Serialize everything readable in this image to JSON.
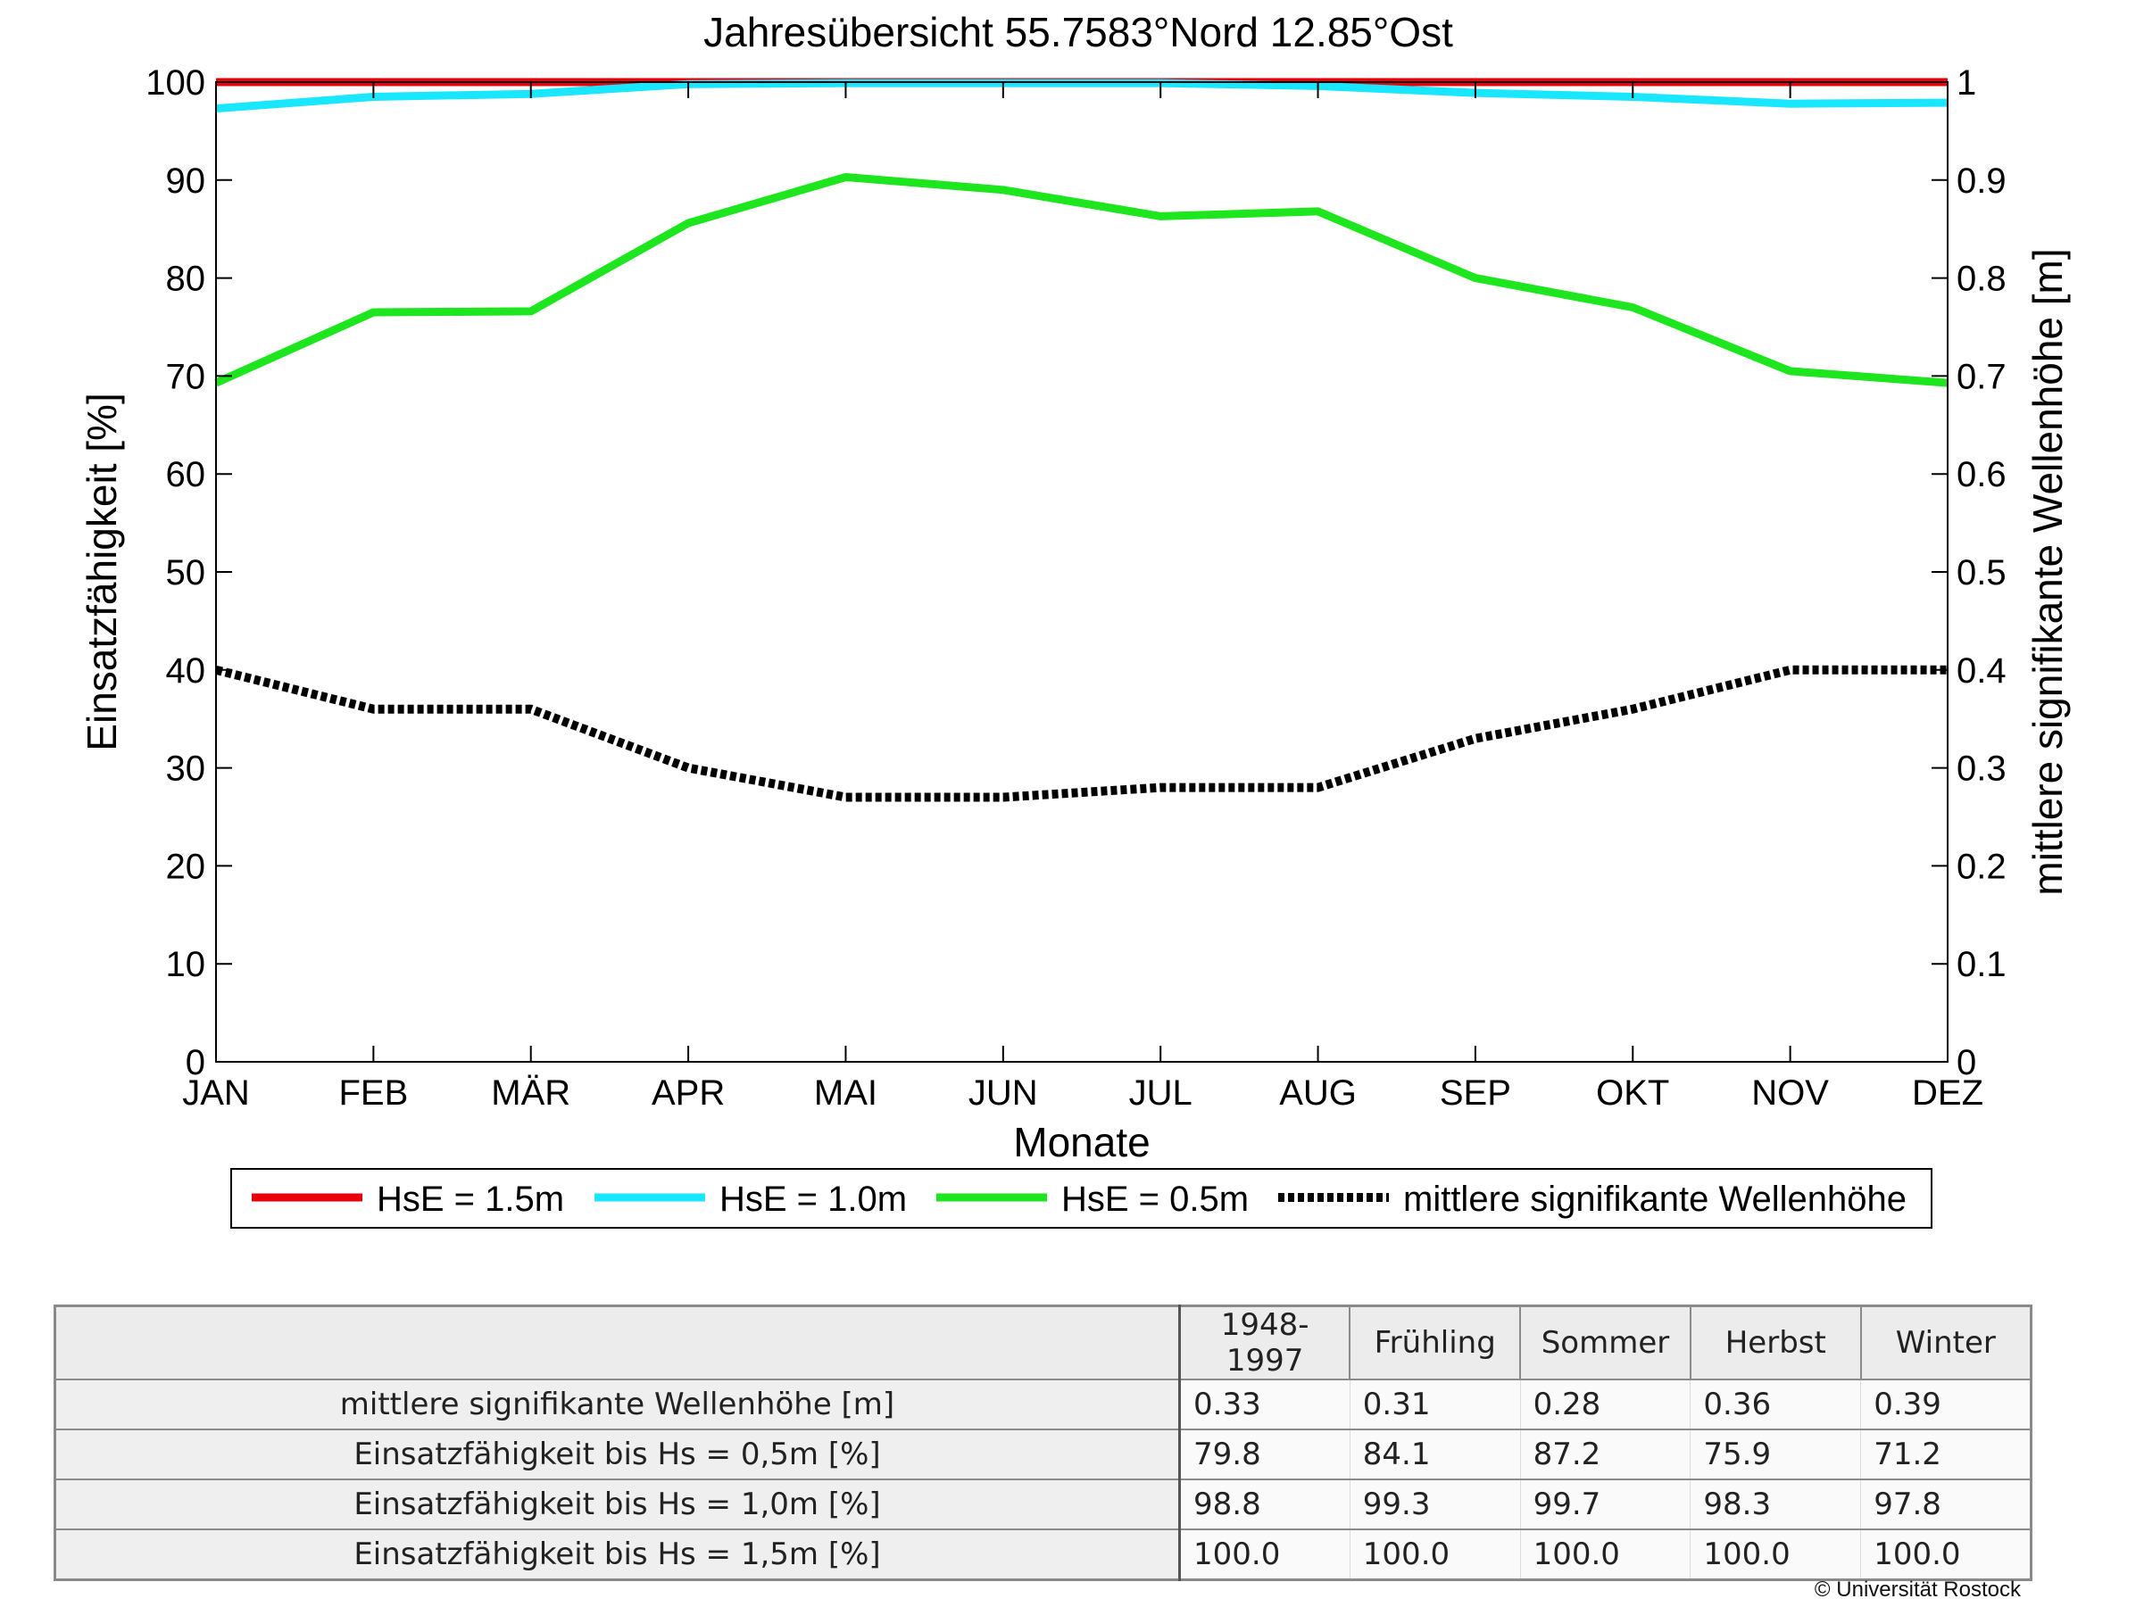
{
  "chart_data": {
    "type": "line",
    "title": "Jahresübersicht  55.7583°Nord  12.85°Ost",
    "xlabel": "Monate",
    "ylabel": "Einsatzfähigkeit [%]",
    "y2label": "mittlere signifikante Wellenhöhe [m]",
    "categories": [
      "JAN",
      "FEB",
      "MÄR",
      "APR",
      "MAI",
      "JUN",
      "JUL",
      "AUG",
      "SEP",
      "OKT",
      "NOV",
      "DEZ"
    ],
    "ylim": [
      0,
      100
    ],
    "y2lim": [
      0,
      1
    ],
    "yticks": [
      "0",
      "10",
      "20",
      "30",
      "40",
      "50",
      "60",
      "70",
      "80",
      "90",
      "100"
    ],
    "y2ticks": [
      "0",
      "0.1",
      "0.2",
      "0.3",
      "0.4",
      "0.5",
      "0.6",
      "0.7",
      "0.8",
      "0.9",
      "1"
    ],
    "grid": false,
    "legend_position": "bottom",
    "series": [
      {
        "name": "HsE = 1.5m",
        "axis": "left",
        "color": "#e8000b",
        "style": "solid",
        "values": [
          100,
          100,
          100,
          100,
          100,
          100,
          100,
          100,
          100,
          100,
          100,
          100
        ]
      },
      {
        "name": "HsE = 1.0m",
        "axis": "left",
        "color": "#19e6ff",
        "style": "solid",
        "values": [
          97.3,
          98.5,
          98.8,
          99.8,
          99.9,
          99.9,
          99.9,
          99.6,
          98.9,
          98.5,
          97.8,
          97.9
        ]
      },
      {
        "name": "HsE = 0.5m",
        "axis": "left",
        "color": "#1ee61e",
        "style": "solid",
        "values": [
          69.3,
          76.5,
          76.6,
          85.6,
          90.3,
          89.0,
          86.3,
          86.8,
          80.0,
          77.0,
          70.5,
          69.3
        ]
      },
      {
        "name": "mittlere signifikante Wellenhöhe",
        "axis": "right",
        "color": "#000000",
        "style": "dotted",
        "values": [
          0.4,
          0.36,
          0.36,
          0.3,
          0.27,
          0.27,
          0.28,
          0.28,
          0.33,
          0.36,
          0.4,
          0.4
        ]
      }
    ]
  },
  "table": {
    "columns": [
      "1948-1997",
      "Frühling",
      "Sommer",
      "Herbst",
      "Winter"
    ],
    "rows": [
      {
        "label": "mittlere signifikante Wellenhöhe [m]",
        "values": [
          "0.33",
          "0.31",
          "0.28",
          "0.36",
          "0.39"
        ]
      },
      {
        "label": "Einsatzfähigkeit bis Hs = 0,5m [%]",
        "values": [
          "79.8",
          "84.1",
          "87.2",
          "75.9",
          "71.2"
        ]
      },
      {
        "label": "Einsatzfähigkeit bis Hs = 1,0m [%]",
        "values": [
          "98.8",
          "99.3",
          "99.7",
          "98.3",
          "97.8"
        ]
      },
      {
        "label": "Einsatzfähigkeit bis Hs = 1,5m [%]",
        "values": [
          "100.0",
          "100.0",
          "100.0",
          "100.0",
          "100.0"
        ]
      }
    ]
  },
  "copyright": "© Universität Rostock"
}
